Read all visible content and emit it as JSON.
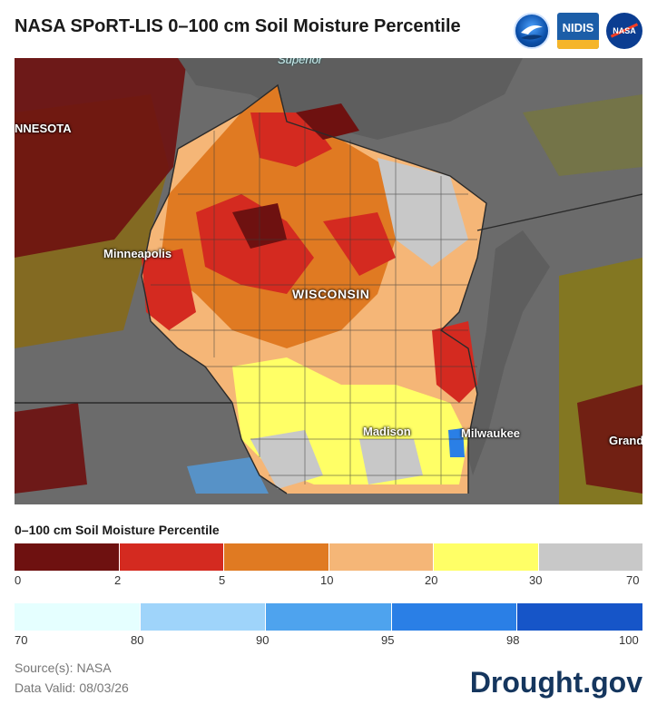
{
  "header": {
    "title": "NASA SPoRT-LIS 0–100 cm Soil Moisture Percentile",
    "logos": [
      {
        "name": "noaa-logo",
        "text": "NOAA"
      },
      {
        "name": "nidis-logo",
        "text": "NIDIS"
      },
      {
        "name": "nasa-logo",
        "text": "NASA"
      }
    ]
  },
  "map": {
    "labels": {
      "superior": "Superior",
      "minnesota": "NNESOTA",
      "minneapolis": "Minneapolis",
      "wisconsin": "WISCONSIN",
      "madison": "Madison",
      "milwaukee": "Milwaukee",
      "grand": "Grand"
    },
    "colors": {
      "background": "#6b6b6b",
      "lake": "#5a5a5a",
      "dark_red": "#6e1110",
      "red": "#d42a20",
      "orange": "#e07a22",
      "light_orange": "#f3b676",
      "yellow": "#ffff55",
      "gray": "#c8c8c8",
      "olive": "#8a7a10"
    }
  },
  "legend": {
    "title": "0–100 cm Soil Moisture Percentile",
    "dry": {
      "colors": [
        "#6e1110",
        "#d42a20",
        "#e07a22",
        "#f5b677",
        "#ffff66",
        "#c8c8c8"
      ],
      "ticks": [
        "0",
        "2",
        "5",
        "10",
        "20",
        "30",
        "70"
      ]
    },
    "wet": {
      "colors": [
        "#e5ffff",
        "#9fd4fa",
        "#4ea3ee",
        "#2a7fe6",
        "#1655c8"
      ],
      "ticks": [
        "70",
        "80",
        "90",
        "95",
        "98",
        "100"
      ]
    }
  },
  "footer": {
    "source": "Source(s): NASA",
    "date": "Data Valid: 08/03/26",
    "brand": "Drought.gov"
  }
}
